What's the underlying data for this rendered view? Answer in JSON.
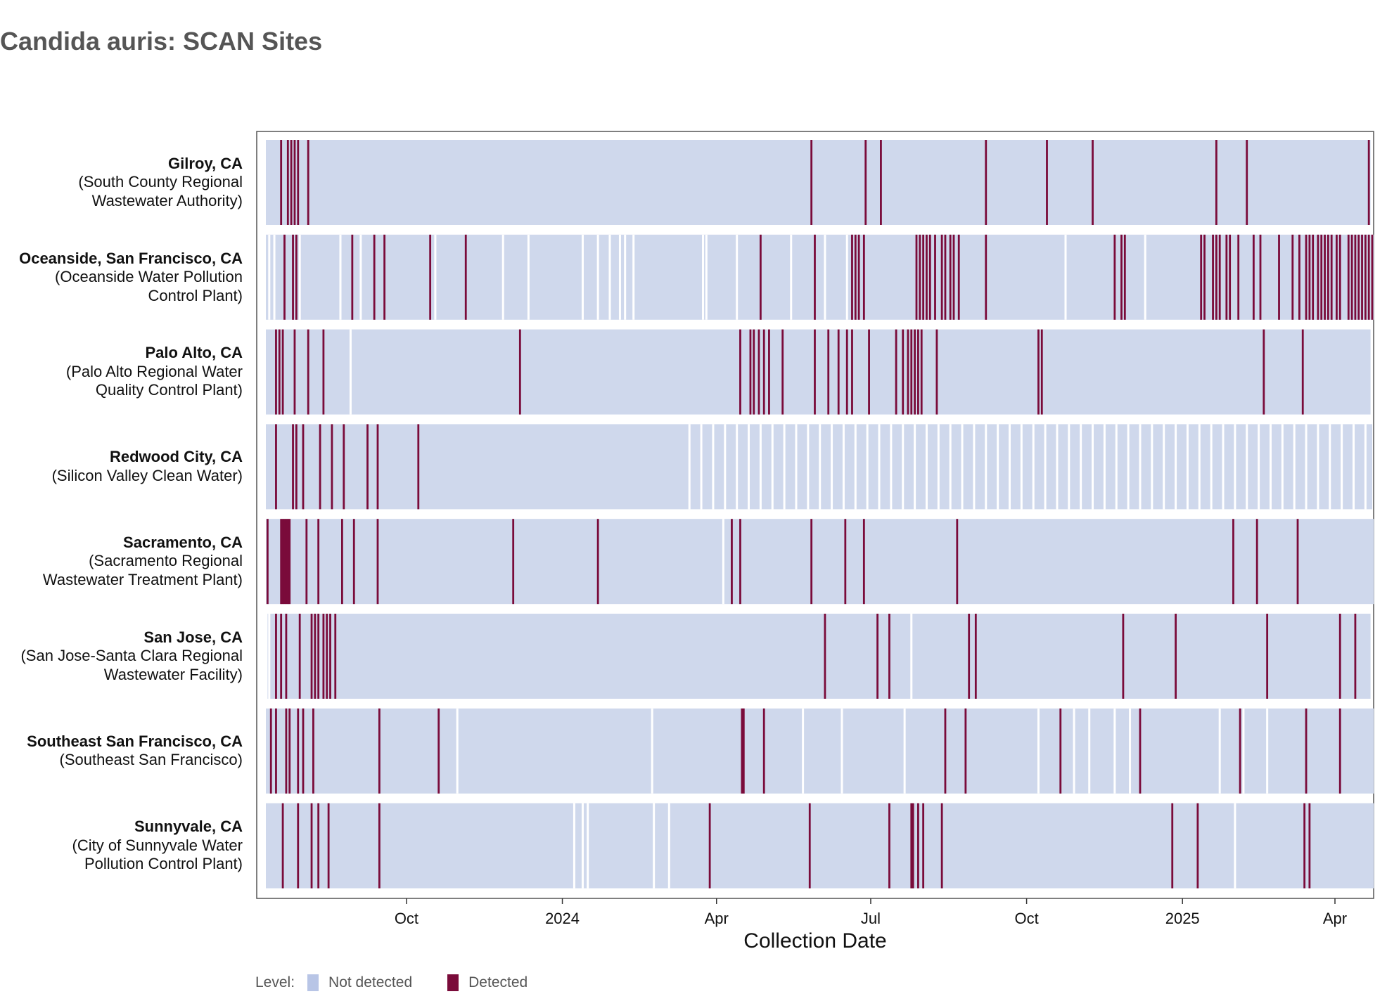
{
  "title": "Candida auris: SCAN Sites",
  "colors": {
    "not_detected": "#CFD8EC",
    "not_detected_swatch": "#B8C5E6",
    "detected": "#7A0B3A",
    "panel_border": "#555555"
  },
  "legend": {
    "title": "Level:",
    "items": [
      {
        "label": "Not detected",
        "color": "#B8C5E6"
      },
      {
        "label": "Detected",
        "color": "#7A0B3A"
      }
    ]
  },
  "chart_data": {
    "type": "heatmap",
    "title": "Candida auris: SCAN Sites",
    "xlabel": "Collection Date",
    "x_range": [
      "2023-07-10",
      "2025-04-23"
    ],
    "x_ticks": [
      {
        "date": "2023-10-01",
        "label": "Oct"
      },
      {
        "date": "2024-01-01",
        "label": "2024"
      },
      {
        "date": "2024-04-01",
        "label": "Apr"
      },
      {
        "date": "2024-07-01",
        "label": "Jul"
      },
      {
        "date": "2024-10-01",
        "label": "Oct"
      },
      {
        "date": "2025-01-01",
        "label": "2025"
      },
      {
        "date": "2025-04-01",
        "label": "Apr"
      }
    ],
    "levels": [
      "Not detected",
      "Detected"
    ],
    "sites": [
      {
        "name": "Gilroy, CA",
        "facility": "(South County Regional Wastewater Authority)",
        "detected_dates": [
          "2023-07-19",
          "2023-07-23",
          "2023-07-25",
          "2023-07-27",
          "2023-07-29",
          "2023-08-04",
          "2024-05-27",
          "2024-06-28",
          "2024-07-07",
          "2024-09-07",
          "2024-10-13",
          "2024-11-09",
          "2025-01-21",
          "2025-02-08",
          "2025-04-21"
        ],
        "not_detected_periods": [
          [
            "2023-07-10",
            "2025-04-21"
          ]
        ],
        "missing_dates": []
      },
      {
        "name": "Oceanside, San Francisco, CA",
        "facility": "(Oceanside Water Pollution Control Plant)",
        "detected_dates": [
          "2023-07-21",
          "2023-07-26",
          "2023-07-28",
          "2023-08-30",
          "2023-09-12",
          "2023-09-18",
          "2023-10-15",
          "2023-11-05",
          "2024-04-27",
          "2024-05-29",
          "2024-06-20",
          "2024-06-22",
          "2024-06-24",
          "2024-06-27",
          "2024-07-28",
          "2024-07-30",
          "2024-08-01",
          "2024-08-03",
          "2024-08-05",
          "2024-08-08",
          "2024-08-12",
          "2024-08-14",
          "2024-08-17",
          "2024-08-19",
          "2024-08-22",
          "2024-09-07",
          "2024-11-22",
          "2024-11-26",
          "2024-11-28",
          "2025-01-12",
          "2025-01-14",
          "2025-01-19",
          "2025-01-21",
          "2025-01-23",
          "2025-01-27",
          "2025-01-29",
          "2025-02-03",
          "2025-02-12",
          "2025-02-16",
          "2025-02-27",
          "2025-03-07",
          "2025-03-11",
          "2025-03-15",
          "2025-03-17",
          "2025-03-19",
          "2025-03-22",
          "2025-03-24",
          "2025-03-26",
          "2025-03-28",
          "2025-03-30",
          "2025-04-02",
          "2025-04-04",
          "2025-04-09",
          "2025-04-11",
          "2025-04-13",
          "2025-04-15",
          "2025-04-17",
          "2025-04-19",
          "2025-04-21",
          "2025-04-23"
        ],
        "not_detected_periods": [
          [
            "2023-07-10",
            "2025-04-23"
          ]
        ],
        "missing_dates": [
          "2023-07-12",
          "2023-07-15",
          "2023-07-30",
          "2023-08-23",
          "2023-09-04",
          "2023-10-18",
          "2023-11-27",
          "2023-12-12",
          "2024-01-13",
          "2024-01-22",
          "2024-01-29",
          "2024-02-04",
          "2024-02-07",
          "2024-02-12",
          "2024-03-24",
          "2024-03-26",
          "2024-04-13",
          "2024-05-15",
          "2024-06-04",
          "2024-06-17",
          "2024-10-24",
          "2024-12-10"
        ]
      },
      {
        "name": "Palo Alto, CA",
        "facility": "(Palo Alto Regional Water Quality Control Plant)",
        "detected_dates": [
          "2023-07-16",
          "2023-07-18",
          "2023-07-20",
          "2023-07-27",
          "2023-08-04",
          "2023-08-13",
          "2023-12-07",
          "2024-04-15",
          "2024-04-21",
          "2024-04-23",
          "2024-04-26",
          "2024-04-29",
          "2024-05-02",
          "2024-05-10",
          "2024-05-29",
          "2024-06-06",
          "2024-06-12",
          "2024-06-17",
          "2024-06-20",
          "2024-06-30",
          "2024-07-16",
          "2024-07-20",
          "2024-07-23",
          "2024-07-25",
          "2024-07-27",
          "2024-07-29",
          "2024-07-31",
          "2024-08-09",
          "2024-10-08",
          "2024-10-10",
          "2025-02-18",
          "2025-03-13"
        ],
        "not_detected_periods": [
          [
            "2023-07-10",
            "2025-04-21"
          ]
        ],
        "missing_dates": [
          "2023-08-29"
        ]
      },
      {
        "name": "Redwood City, CA",
        "facility": "(Silicon Valley Clean Water)",
        "detected_dates": [
          "2023-07-16",
          "2023-07-26",
          "2023-07-28",
          "2023-08-01",
          "2023-08-11",
          "2023-08-18",
          "2023-08-25",
          "2023-09-08",
          "2023-09-14",
          "2023-10-08"
        ],
        "not_detected_periods": [
          [
            "2023-07-10",
            "2025-04-22"
          ]
        ],
        "missing_dates": [
          "2024-03-16",
          "2024-03-23",
          "2024-03-30",
          "2024-04-06",
          "2024-04-13",
          "2024-04-20",
          "2024-04-27",
          "2024-05-04",
          "2024-05-11",
          "2024-05-18",
          "2024-05-25",
          "2024-06-01",
          "2024-06-08",
          "2024-06-15",
          "2024-06-22",
          "2024-06-29",
          "2024-07-06",
          "2024-07-13",
          "2024-07-20",
          "2024-07-27",
          "2024-08-03",
          "2024-08-10",
          "2024-08-17",
          "2024-08-24",
          "2024-08-31",
          "2024-09-07",
          "2024-09-14",
          "2024-09-21",
          "2024-09-28",
          "2024-10-05",
          "2024-10-12",
          "2024-10-19",
          "2024-10-26",
          "2024-11-02",
          "2024-11-09",
          "2024-11-16",
          "2024-11-23",
          "2024-11-30",
          "2024-12-07",
          "2024-12-14",
          "2024-12-21",
          "2024-12-28",
          "2025-01-04",
          "2025-01-11",
          "2025-01-18",
          "2025-01-25",
          "2025-02-01",
          "2025-02-08",
          "2025-02-15",
          "2025-02-22",
          "2025-03-01",
          "2025-03-08",
          "2025-03-15",
          "2025-03-22",
          "2025-03-29",
          "2025-04-05",
          "2025-04-12",
          "2025-04-19"
        ]
      },
      {
        "name": "Sacramento, CA",
        "facility": "(Sacramento Regional Wastewater Treatment Plant)",
        "detected_dates": [
          "2023-07-11",
          "2023-07-19",
          "2023-07-20",
          "2023-07-21",
          "2023-07-22",
          "2023-07-23",
          "2023-07-24",
          "2023-08-03",
          "2023-08-10",
          "2023-08-24",
          "2023-08-31",
          "2023-09-14",
          "2023-12-03",
          "2024-01-22",
          "2024-04-10",
          "2024-04-15",
          "2024-05-27",
          "2024-06-16",
          "2024-06-27",
          "2024-08-21",
          "2025-01-31",
          "2025-02-14",
          "2025-03-10"
        ],
        "not_detected_periods": [
          [
            "2023-07-10",
            "2025-04-23"
          ]
        ],
        "missing_dates": [
          "2024-04-05"
        ]
      },
      {
        "name": "San Jose, CA",
        "facility": "(San Jose-Santa Clara Regional Wastewater Facility)",
        "detected_dates": [
          "2023-07-16",
          "2023-07-19",
          "2023-07-22",
          "2023-07-30",
          "2023-08-06",
          "2023-08-08",
          "2023-08-10",
          "2023-08-13",
          "2023-08-15",
          "2023-08-17",
          "2023-08-20",
          "2024-06-04",
          "2024-07-05",
          "2024-07-12",
          "2024-08-28",
          "2024-09-01",
          "2024-11-27",
          "2024-12-28",
          "2025-02-20",
          "2025-04-04",
          "2025-04-13"
        ],
        "not_detected_periods": [
          [
            "2023-07-11",
            "2025-04-21"
          ]
        ],
        "missing_dates": [
          "2023-07-12",
          "2024-07-25"
        ]
      },
      {
        "name": "Southeast San Francisco, CA",
        "facility": "(Southeast San Francisco)",
        "detected_dates": [
          "2023-07-13",
          "2023-07-16",
          "2023-07-22",
          "2023-07-24",
          "2023-07-29",
          "2023-08-01",
          "2023-08-07",
          "2023-09-15",
          "2023-10-20",
          "2024-04-16",
          "2024-04-17",
          "2024-04-29",
          "2024-08-14",
          "2024-08-26",
          "2024-10-21",
          "2024-12-07",
          "2025-02-04",
          "2025-03-15",
          "2025-04-04"
        ],
        "not_detected_periods": [
          [
            "2023-07-10",
            "2025-04-23"
          ]
        ],
        "missing_dates": [
          "2023-10-31",
          "2024-02-23",
          "2024-05-22",
          "2024-06-14",
          "2024-07-21",
          "2024-10-08",
          "2024-10-29",
          "2024-11-07",
          "2024-11-22",
          "2024-12-01",
          "2025-01-23",
          "2025-02-06",
          "2025-02-20"
        ]
      },
      {
        "name": "Sunnyvale, CA",
        "facility": "(City of Sunnyvale Water Pollution Control Plant)",
        "detected_dates": [
          "2023-07-20",
          "2023-07-29",
          "2023-08-06",
          "2023-08-10",
          "2023-08-16",
          "2023-09-15",
          "2024-03-28",
          "2024-05-26",
          "2024-07-12",
          "2024-07-25",
          "2024-07-26",
          "2024-07-29",
          "2024-08-01",
          "2024-08-12",
          "2024-12-26",
          "2025-01-10",
          "2025-03-14",
          "2025-03-17"
        ],
        "not_detected_periods": [
          [
            "2023-07-10",
            "2025-04-23"
          ]
        ],
        "missing_dates": [
          "2024-01-08",
          "2024-01-13",
          "2024-01-16",
          "2024-02-24",
          "2024-03-04",
          "2025-02-01"
        ]
      }
    ]
  }
}
